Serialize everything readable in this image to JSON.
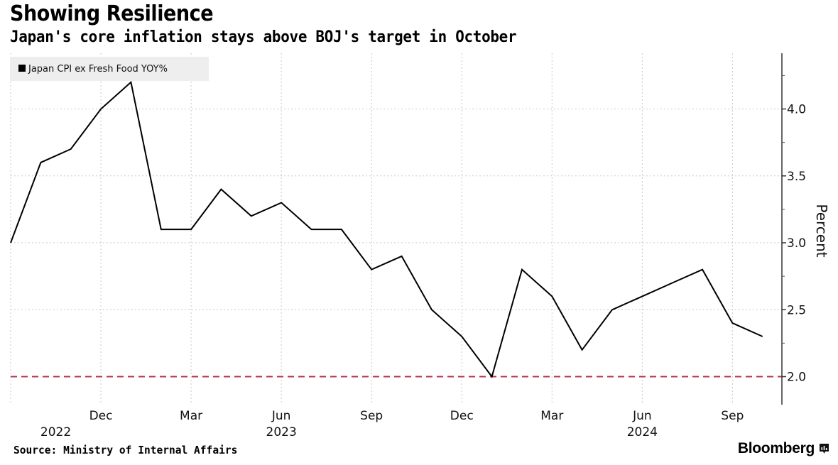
{
  "header": {
    "title": "Showing Resilience",
    "subtitle": "Japan's core inflation stays above BOJ's target in October"
  },
  "footer": {
    "source": "Source: Ministry of Internal Affairs",
    "brand": "Bloomberg"
  },
  "colors": {
    "line": "#000000",
    "target_line": "#b5354f",
    "grid": "#c8c8c8",
    "legend_bg": "#eeeeee"
  },
  "chart_data": {
    "type": "line",
    "title": "Showing Resilience",
    "subtitle": "Japan's core inflation stays above BOJ's target in October",
    "xlabel": "",
    "ylabel": "Percent",
    "ylim": [
      1.8,
      4.4
    ],
    "y_ticks": [
      "2.0",
      "2.5",
      "3.0",
      "3.5",
      "4.0"
    ],
    "y_tick_values": [
      2.0,
      2.5,
      3.0,
      3.5,
      4.0
    ],
    "y_minor_ticks": [
      2.25,
      2.75,
      3.25,
      3.75,
      4.25
    ],
    "y_axis_side": "right",
    "grid": true,
    "legend_position": "top-left",
    "x": [
      "2022-09",
      "2022-10",
      "2022-11",
      "2022-12",
      "2023-01",
      "2023-02",
      "2023-03",
      "2023-04",
      "2023-05",
      "2023-06",
      "2023-07",
      "2023-08",
      "2023-09",
      "2023-10",
      "2023-11",
      "2023-12",
      "2024-01",
      "2024-02",
      "2024-03",
      "2024-04",
      "2024-05",
      "2024-06",
      "2024-07",
      "2024-08",
      "2024-09",
      "2024-10"
    ],
    "x_ticks": [
      {
        "label": "Dec",
        "index": 3
      },
      {
        "label": "Mar",
        "index": 6
      },
      {
        "label": "Jun",
        "index": 9
      },
      {
        "label": "Sep",
        "index": 12
      },
      {
        "label": "Dec",
        "index": 15
      },
      {
        "label": "Mar",
        "index": 18
      },
      {
        "label": "Jun",
        "index": 21
      },
      {
        "label": "Sep",
        "index": 24
      }
    ],
    "x_year_labels": [
      {
        "label": "2022",
        "index": 1.5
      },
      {
        "label": "2023",
        "index": 9
      },
      {
        "label": "2024",
        "index": 21
      }
    ],
    "series": [
      {
        "name": "Japan CPI ex Fresh Food YOY%",
        "values": [
          3.0,
          3.6,
          3.7,
          4.0,
          4.2,
          3.1,
          3.1,
          3.4,
          3.2,
          3.3,
          3.1,
          3.1,
          2.8,
          2.9,
          2.5,
          2.3,
          2.0,
          2.8,
          2.6,
          2.2,
          2.5,
          2.6,
          2.7,
          2.8,
          2.4,
          2.3
        ]
      }
    ],
    "reference_lines": [
      {
        "name": "BOJ target",
        "value": 2.0,
        "style": "dashed"
      }
    ]
  }
}
